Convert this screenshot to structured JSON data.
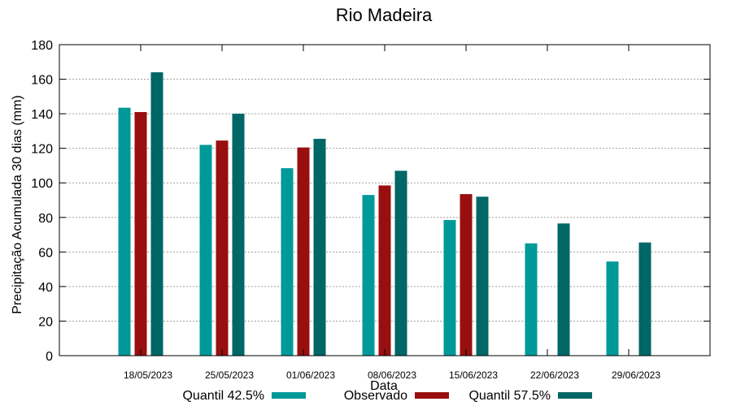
{
  "chart_data": {
    "type": "bar",
    "title": "Rio Madeira",
    "xlabel": "Data",
    "ylabel": "Precipitação Acumulada 30 dias (mm)",
    "ylim": [
      0,
      180
    ],
    "yticks": [
      0,
      20,
      40,
      60,
      80,
      100,
      120,
      140,
      160,
      180
    ],
    "grid": true,
    "legend_position": "bottom",
    "categories": [
      "18/05/2023",
      "25/05/2023",
      "01/06/2023",
      "08/06/2023",
      "15/06/2023",
      "22/06/2023",
      "29/06/2023"
    ],
    "series": [
      {
        "name": "Quantil 42.5%",
        "color": "#009999",
        "values": [
          143.5,
          122,
          108.5,
          93,
          78.5,
          65,
          54.5
        ]
      },
      {
        "name": "Observado",
        "color": "#990f0f",
        "values": [
          141,
          124.5,
          120.5,
          98.5,
          93.5,
          null,
          null
        ]
      },
      {
        "name": "Quantil 57.5%",
        "color": "#006666",
        "values": [
          164,
          140,
          125.5,
          107,
          92,
          76.5,
          65.5
        ]
      }
    ]
  }
}
